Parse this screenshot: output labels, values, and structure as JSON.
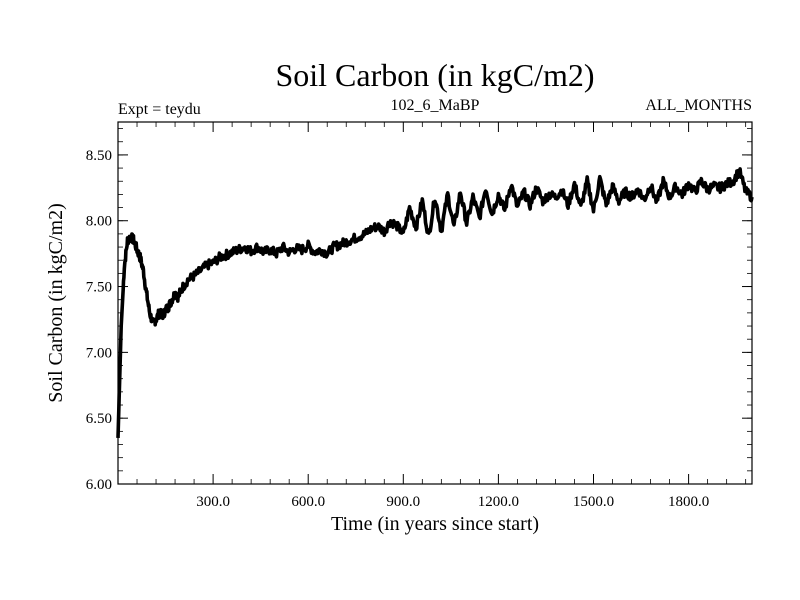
{
  "chart_data": {
    "type": "line",
    "title": "Soil Carbon (in kgC/m2)",
    "subtitle_left": "Expt = teydu",
    "subtitle_center": "102_6_MaBP",
    "subtitle_right": "ALL_MONTHS",
    "xlabel": "Time (in years since start)",
    "ylabel": "Soil Carbon (in kgC/m2)",
    "xlim": [
      0,
      2000
    ],
    "ylim": [
      6.0,
      8.75
    ],
    "x_ticks": [
      300,
      600,
      900,
      1200,
      1500,
      1800
    ],
    "x_tick_labels": [
      "300.0",
      "600.0",
      "900.0",
      "1200.0",
      "1500.0",
      "1800.0"
    ],
    "y_ticks": [
      6.0,
      6.5,
      7.0,
      7.5,
      8.0,
      8.5
    ],
    "y_tick_labels": [
      "6.00",
      "6.50",
      "7.00",
      "7.50",
      "8.00",
      "8.50"
    ],
    "grid": false,
    "line_color": "#000000",
    "series": [
      {
        "name": "Soil Carbon",
        "x": [
          0,
          10,
          20,
          30,
          40,
          50,
          60,
          70,
          80,
          90,
          100,
          110,
          120,
          130,
          140,
          150,
          160,
          170,
          180,
          190,
          200,
          220,
          240,
          260,
          280,
          300,
          320,
          340,
          360,
          380,
          400,
          420,
          440,
          460,
          480,
          500,
          520,
          540,
          560,
          580,
          600,
          620,
          640,
          660,
          680,
          700,
          720,
          740,
          760,
          780,
          800,
          820,
          840,
          860,
          880,
          900,
          920,
          940,
          960,
          980,
          1000,
          1020,
          1040,
          1060,
          1080,
          1100,
          1120,
          1140,
          1160,
          1180,
          1200,
          1220,
          1240,
          1260,
          1280,
          1300,
          1320,
          1340,
          1360,
          1380,
          1400,
          1420,
          1440,
          1460,
          1480,
          1500,
          1520,
          1540,
          1560,
          1580,
          1600,
          1620,
          1640,
          1660,
          1680,
          1700,
          1720,
          1740,
          1760,
          1780,
          1800,
          1820,
          1840,
          1860,
          1880,
          1900,
          1920,
          1940,
          1960,
          1980,
          2000
        ],
        "y": [
          6.35,
          7.2,
          7.65,
          7.85,
          7.88,
          7.85,
          7.78,
          7.72,
          7.62,
          7.45,
          7.3,
          7.22,
          7.25,
          7.3,
          7.28,
          7.32,
          7.35,
          7.4,
          7.45,
          7.42,
          7.48,
          7.55,
          7.58,
          7.62,
          7.66,
          7.68,
          7.72,
          7.74,
          7.76,
          7.78,
          7.8,
          7.77,
          7.8,
          7.76,
          7.78,
          7.75,
          7.8,
          7.76,
          7.79,
          7.78,
          7.81,
          7.76,
          7.78,
          7.75,
          7.8,
          7.82,
          7.84,
          7.86,
          7.88,
          7.9,
          7.94,
          7.96,
          7.92,
          8.0,
          7.96,
          7.9,
          8.1,
          7.95,
          8.15,
          7.88,
          8.18,
          7.92,
          8.2,
          7.95,
          8.22,
          7.98,
          8.18,
          8.02,
          8.25,
          8.05,
          8.2,
          8.08,
          8.28,
          8.1,
          8.22,
          8.12,
          8.25,
          8.15,
          8.2,
          8.18,
          8.23,
          8.12,
          8.28,
          8.1,
          8.3,
          8.08,
          8.32,
          8.12,
          8.26,
          8.15,
          8.22,
          8.18,
          8.24,
          8.16,
          8.27,
          8.14,
          8.3,
          8.18,
          8.26,
          8.2,
          8.28,
          8.22,
          8.3,
          8.24,
          8.26,
          8.25,
          8.28,
          8.3,
          8.38,
          8.22,
          8.18
        ]
      }
    ]
  }
}
